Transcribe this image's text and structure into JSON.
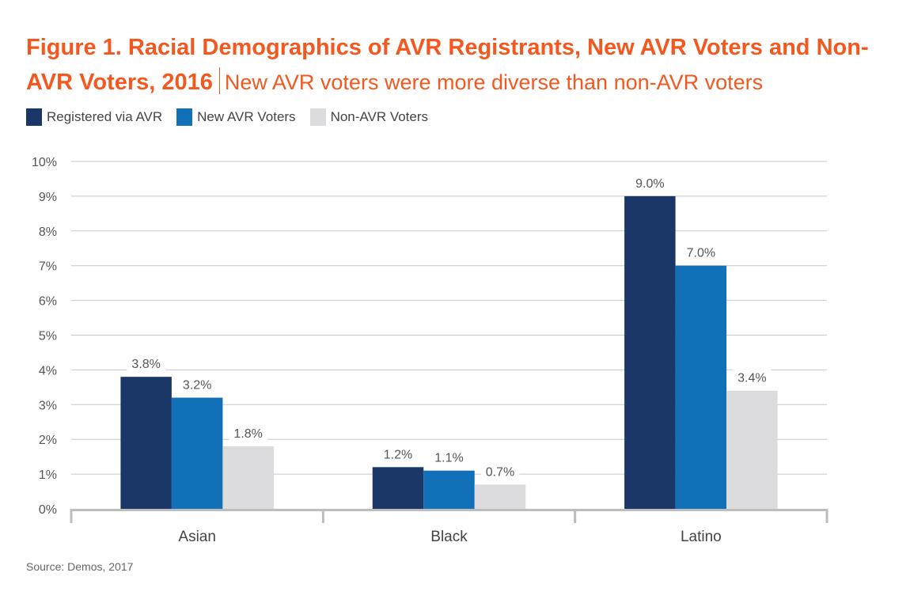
{
  "title": {
    "bold": "Figure 1. Racial Demographics of AVR Registrants, New AVR Voters and Non-AVR Voters, 2016",
    "subtitle": "New AVR voters were more diverse than non-AVR voters"
  },
  "source": "Source: Demos, 2017",
  "chart_data": {
    "type": "bar",
    "title": "Figure 1. Racial Demographics of AVR Registrants, New AVR Voters and Non-AVR Voters, 2016",
    "subtitle": "New AVR voters were more diverse than non-AVR voters",
    "categories": [
      "Asian",
      "Black",
      "Latino"
    ],
    "series": [
      {
        "name": "Registered via AVR",
        "color": "#1b3768",
        "values": [
          3.8,
          1.2,
          9.0
        ],
        "labels": [
          "3.8%",
          "1.2%",
          "9.0%"
        ]
      },
      {
        "name": "New AVR Voters",
        "color": "#1270b8",
        "values": [
          3.2,
          1.1,
          7.0
        ],
        "labels": [
          "3.2%",
          "1.1%",
          "7.0%"
        ]
      },
      {
        "name": "Non-AVR Voters",
        "color": "#dcdcde",
        "values": [
          1.8,
          0.7,
          3.4
        ],
        "labels": [
          "1.8%",
          "0.7%",
          "3.4%"
        ]
      }
    ],
    "yticks": [
      "0%",
      "1%",
      "2%",
      "3%",
      "4%",
      "5%",
      "6%",
      "7%",
      "8%",
      "9%",
      "10%"
    ],
    "ylim": [
      0,
      10
    ],
    "xlabel": "",
    "ylabel": "",
    "grid": true,
    "legend": "top-left",
    "source": "Source: Demos, 2017"
  }
}
